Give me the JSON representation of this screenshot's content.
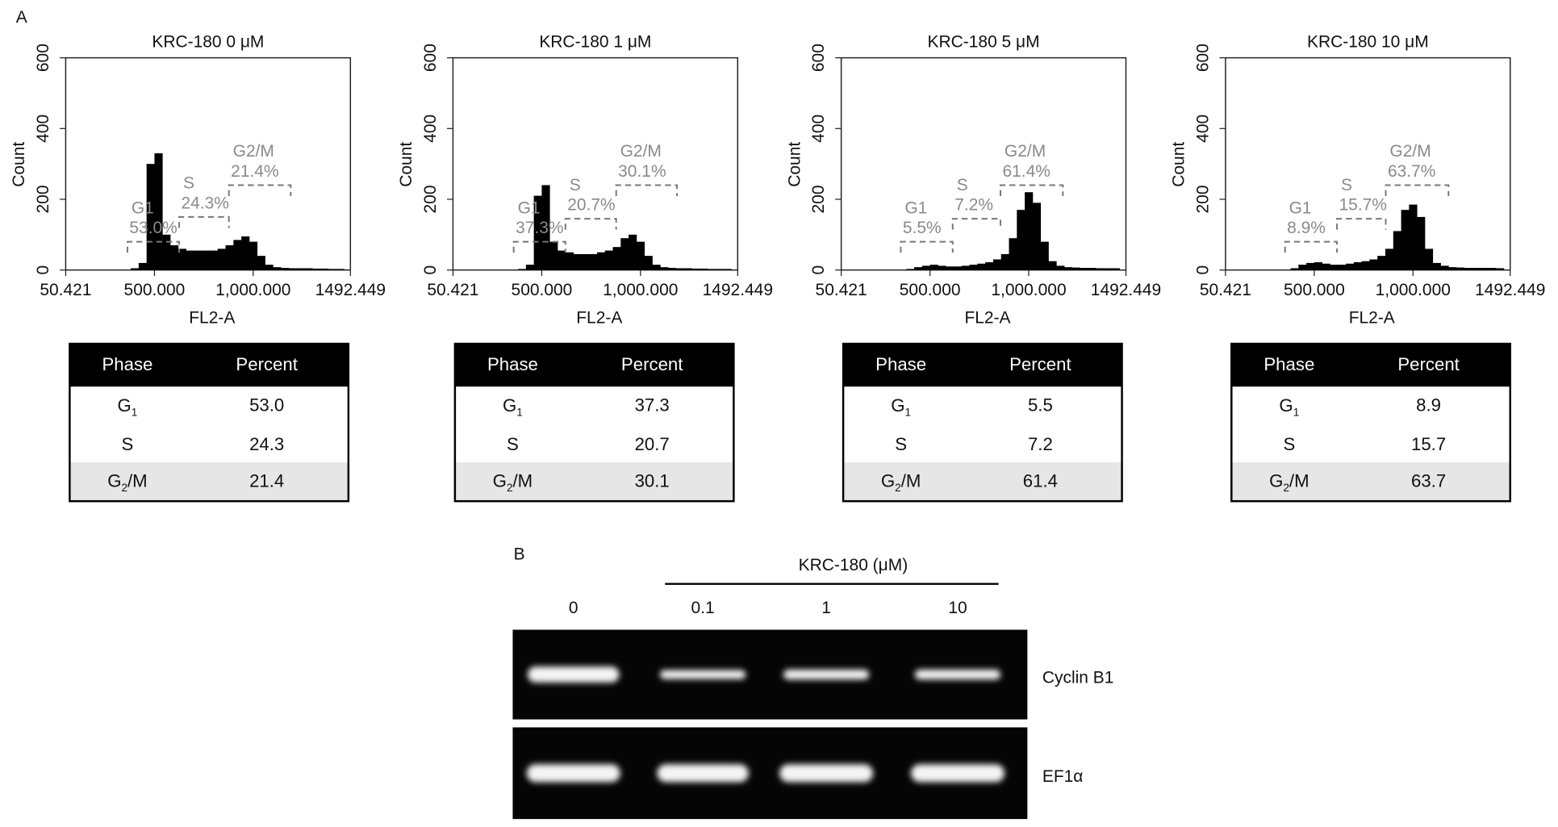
{
  "panel_labels": [
    "A",
    "B"
  ],
  "chart_data": [
    {
      "type": "histogram",
      "title": "KRC-180 0 μM",
      "xlabel": "FL2-A",
      "ylabel": "Count",
      "color": "#000000",
      "xlim": [
        50.421,
        1492.449
      ],
      "xticks": [
        50.421,
        {
          "value": 500,
          "label": "500.000"
        },
        {
          "value": 1000,
          "label": "1,000.000"
        },
        1492.449
      ],
      "ylim": [
        0,
        600
      ],
      "yticks": [
        0,
        200,
        400,
        600
      ],
      "bins": [
        60,
        100,
        140,
        180,
        220,
        260,
        300,
        340,
        380,
        420,
        460,
        500,
        540,
        580,
        620,
        660,
        700,
        740,
        780,
        820,
        860,
        900,
        940,
        980,
        1020,
        1060,
        1100,
        1140,
        1180,
        1220,
        1260,
        1300,
        1340,
        1380,
        1420,
        1460
      ],
      "values": [
        0,
        0,
        0,
        0,
        0,
        0,
        0,
        0,
        5,
        20,
        300,
        330,
        100,
        70,
        60,
        55,
        55,
        55,
        55,
        60,
        70,
        85,
        95,
        80,
        40,
        15,
        8,
        6,
        5,
        5,
        5,
        4,
        4,
        3,
        3
      ],
      "gates": [
        {
          "name": "G1",
          "label": "53.0%",
          "xrange": [
            363,
            625
          ],
          "y": 80
        },
        {
          "name": "S",
          "label": "24.3%",
          "xrange": [
            625,
            877
          ],
          "y": 150
        },
        {
          "name": "G2/M",
          "label": "21.4%",
          "xrange": [
            877,
            1190
          ],
          "y": 240
        }
      ]
    },
    {
      "type": "histogram",
      "title": "KRC-180 1 μM",
      "xlabel": "FL2-A",
      "ylabel": "Count",
      "color": "#000000",
      "xlim": [
        50.421,
        1492.449
      ],
      "xticks": [
        50.421,
        {
          "value": 500,
          "label": "500.000"
        },
        {
          "value": 1000,
          "label": "1,000.000"
        },
        1492.449
      ],
      "ylim": [
        0,
        600
      ],
      "yticks": [
        0,
        200,
        400,
        600
      ],
      "bins": [
        60,
        100,
        140,
        180,
        220,
        260,
        300,
        340,
        380,
        420,
        460,
        500,
        540,
        580,
        620,
        660,
        700,
        740,
        780,
        820,
        860,
        900,
        940,
        980,
        1020,
        1060,
        1100,
        1140,
        1180,
        1220,
        1260,
        1300,
        1340,
        1380,
        1420,
        1460
      ],
      "values": [
        0,
        0,
        0,
        0,
        0,
        0,
        0,
        0,
        3,
        15,
        210,
        240,
        80,
        55,
        50,
        45,
        45,
        45,
        50,
        55,
        65,
        90,
        100,
        80,
        40,
        15,
        8,
        6,
        5,
        5,
        4,
        4,
        3,
        3,
        3
      ],
      "gates": [
        {
          "name": "G1",
          "label": "37.3%",
          "xrange": [
            358,
            620
          ],
          "y": 80
        },
        {
          "name": "S",
          "label": "20.7%",
          "xrange": [
            620,
            877
          ],
          "y": 145
        },
        {
          "name": "G2/M",
          "label": "30.1%",
          "xrange": [
            877,
            1185
          ],
          "y": 240
        }
      ]
    },
    {
      "type": "histogram",
      "title": "KRC-180 5 μM",
      "xlabel": "FL2-A",
      "ylabel": "Count",
      "color": "#000000",
      "xlim": [
        50.421,
        1492.449
      ],
      "xticks": [
        50.421,
        {
          "value": 500,
          "label": "500.000"
        },
        {
          "value": 1000,
          "label": "1,000.000"
        },
        1492.449
      ],
      "ylim": [
        0,
        600
      ],
      "yticks": [
        0,
        200,
        400,
        600
      ],
      "bins": [
        60,
        100,
        140,
        180,
        220,
        260,
        300,
        340,
        380,
        420,
        460,
        500,
        540,
        580,
        620,
        660,
        700,
        740,
        780,
        820,
        860,
        900,
        940,
        980,
        1020,
        1060,
        1100,
        1140,
        1180,
        1220,
        1260,
        1300,
        1340,
        1380,
        1420,
        1460
      ],
      "values": [
        0,
        0,
        0,
        0,
        0,
        0,
        0,
        0,
        3,
        8,
        12,
        15,
        12,
        10,
        10,
        12,
        15,
        18,
        22,
        30,
        45,
        90,
        170,
        220,
        190,
        80,
        25,
        12,
        8,
        7,
        6,
        6,
        5,
        5,
        5
      ],
      "gates": [
        {
          "name": "G1",
          "label": "5.5%",
          "xrange": [
            352,
            615
          ],
          "y": 80
        },
        {
          "name": "S",
          "label": "7.2%",
          "xrange": [
            615,
            857
          ],
          "y": 145
        },
        {
          "name": "G2/M",
          "label": "61.4%",
          "xrange": [
            857,
            1173
          ],
          "y": 240
        }
      ]
    },
    {
      "type": "histogram",
      "title": "KRC-180 10 μM",
      "xlabel": "FL2-A",
      "ylabel": "Count",
      "color": "#000000",
      "xlim": [
        50.421,
        1492.449
      ],
      "xticks": [
        50.421,
        {
          "value": 500,
          "label": "500.000"
        },
        {
          "value": 1000,
          "label": "1,000.000"
        },
        1492.449
      ],
      "ylim": [
        0,
        600
      ],
      "yticks": [
        0,
        200,
        400,
        600
      ],
      "bins": [
        60,
        100,
        140,
        180,
        220,
        260,
        300,
        340,
        380,
        420,
        460,
        500,
        540,
        580,
        620,
        660,
        700,
        740,
        780,
        820,
        860,
        900,
        940,
        980,
        1020,
        1060,
        1100,
        1140,
        1180,
        1220,
        1260,
        1300,
        1340,
        1380,
        1420,
        1460
      ],
      "values": [
        0,
        0,
        0,
        0,
        0,
        0,
        0,
        0,
        5,
        15,
        20,
        22,
        18,
        15,
        15,
        18,
        22,
        25,
        30,
        40,
        60,
        110,
        170,
        185,
        150,
        60,
        20,
        12,
        8,
        7,
        6,
        6,
        6,
        6,
        5
      ],
      "gates": [
        {
          "name": "G1",
          "label": "8.9%",
          "xrange": [
            352,
            615
          ],
          "y": 80
        },
        {
          "name": "S",
          "label": "15.7%",
          "xrange": [
            615,
            862
          ],
          "y": 145
        },
        {
          "name": "G2/M",
          "label": "63.7%",
          "xrange": [
            862,
            1180
          ],
          "y": 240
        }
      ]
    }
  ],
  "tables": [
    {
      "header": [
        "Phase",
        "Percent"
      ],
      "rows": [
        {
          "phase": "G",
          "sub": "1",
          "percent": "53.0"
        },
        {
          "phase": "S",
          "percent": "24.3"
        },
        {
          "phase": "G",
          "sub": "2",
          "suffix": "/M",
          "percent": "21.4"
        }
      ]
    },
    {
      "header": [
        "Phase",
        "Percent"
      ],
      "rows": [
        {
          "phase": "G",
          "sub": "1",
          "percent": "37.3"
        },
        {
          "phase": "S",
          "percent": "20.7"
        },
        {
          "phase": "G",
          "sub": "2",
          "suffix": "/M",
          "percent": "30.1"
        }
      ]
    },
    {
      "header": [
        "Phase",
        "Percent"
      ],
      "rows": [
        {
          "phase": "G",
          "sub": "1",
          "percent": "5.5"
        },
        {
          "phase": "S",
          "percent": "7.2"
        },
        {
          "phase": "G",
          "sub": "2",
          "suffix": "/M",
          "percent": "61.4"
        }
      ]
    },
    {
      "header": [
        "Phase",
        "Percent"
      ],
      "rows": [
        {
          "phase": "G",
          "sub": "1",
          "percent": "8.9"
        },
        {
          "phase": "S",
          "percent": "15.7"
        },
        {
          "phase": "G",
          "sub": "2",
          "suffix": "/M",
          "percent": "63.7"
        }
      ]
    }
  ],
  "blot": {
    "treatment": "KRC-180 (μM)",
    "lanes": [
      "0",
      "0.1",
      "1",
      "10"
    ],
    "bands": [
      "Cyclin B1",
      "EF1α"
    ]
  }
}
